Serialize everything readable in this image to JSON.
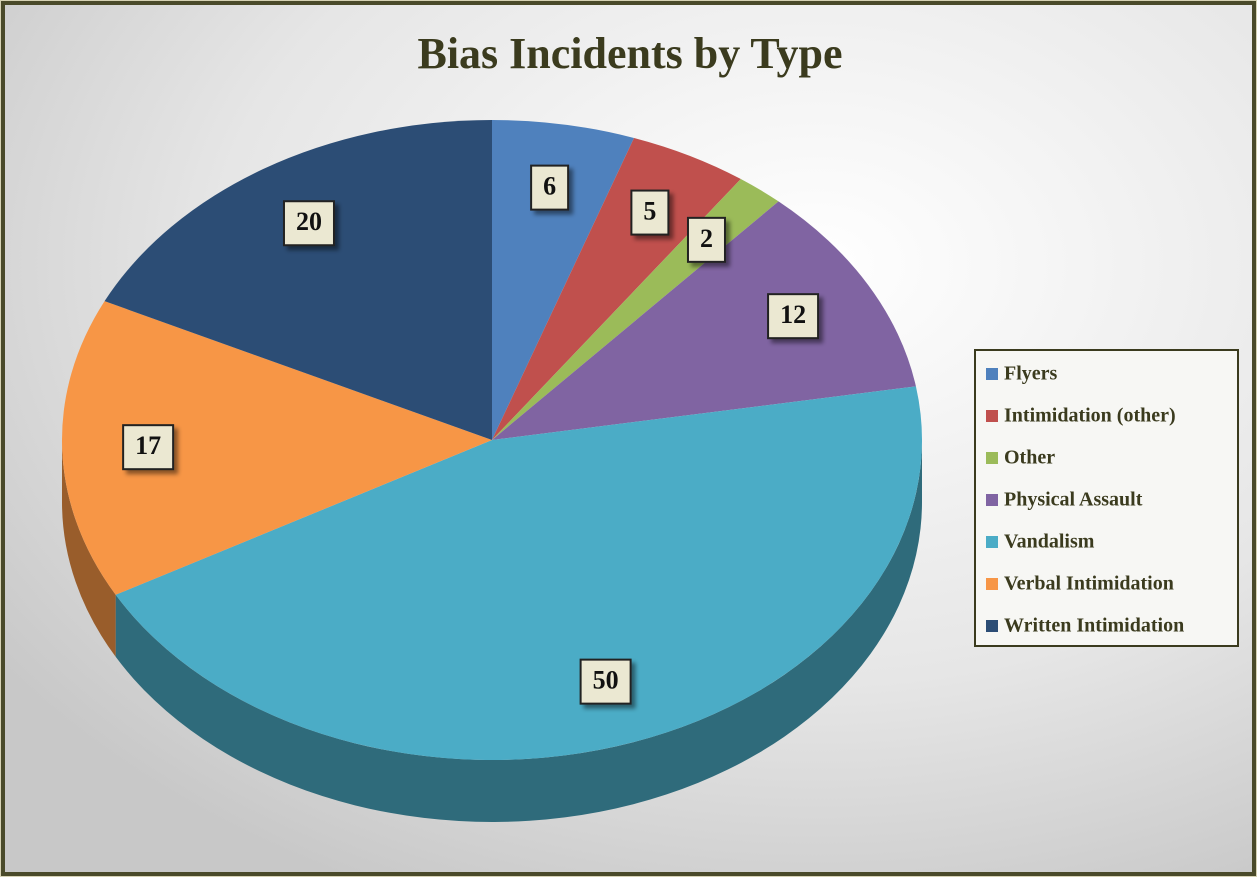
{
  "chart_data": {
    "type": "pie",
    "title": "Bias Incidents by Type",
    "categories": [
      "Flyers",
      "Intimidation (other)",
      "Other",
      "Physical Assault",
      "Vandalism",
      "Verbal Intimidation",
      "Written Intimidation"
    ],
    "values": [
      6,
      5,
      2,
      12,
      50,
      17,
      20
    ],
    "colors": [
      "#4f81bd",
      "#c0504d",
      "#9bbb59",
      "#8064a2",
      "#4bacc6",
      "#f79646",
      "#2c4d75"
    ],
    "legend": "right"
  }
}
